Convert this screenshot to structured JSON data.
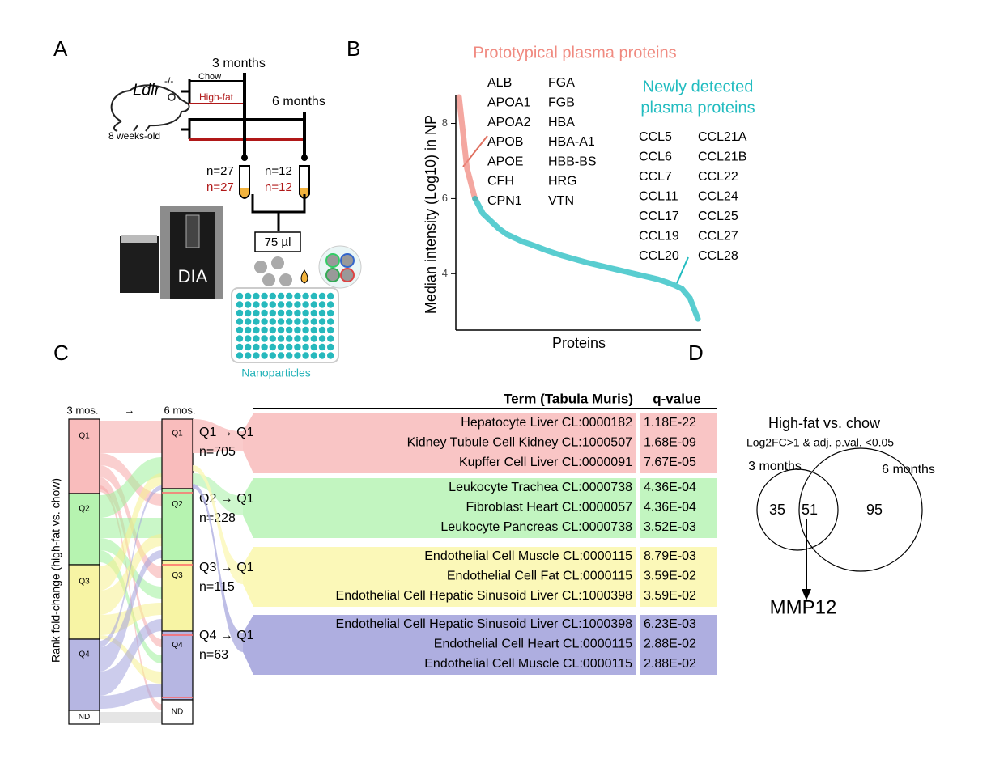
{
  "panels": {
    "a": "A",
    "b": "B",
    "c": "C",
    "d": "D"
  },
  "panel_a": {
    "time1": "3 months",
    "time2": "6 months",
    "strain": "Ldlr",
    "genotype": "-/-",
    "diet1": "Chow",
    "diet2": "High-fat",
    "age": "8 weeks-old",
    "n_chow_3": "n=27",
    "n_hf_3": "n=27",
    "n_chow_6": "n=12",
    "n_hf_6": "n=12",
    "volume": "75 µl",
    "method": "DIA",
    "particles": "Nanoparticles"
  },
  "chart_data": {
    "type": "line",
    "title": "Prototypical plasma proteins",
    "subtitle": [
      "Newly detected",
      "plasma proteins"
    ],
    "ylabel": "Median intensity (Log10) in NP",
    "xlabel": "Proteins",
    "ylim": [
      2.5,
      8.7
    ],
    "yticks": [
      4,
      6,
      8
    ],
    "series": [
      {
        "name": "Prototypical plasma proteins",
        "color": "#f08a80",
        "values": [
          8.7,
          6.8,
          6.0,
          null,
          null,
          null,
          null,
          null,
          null,
          null,
          null,
          null,
          null,
          null,
          null,
          null,
          null,
          null,
          null,
          null,
          null,
          null,
          null,
          null,
          null,
          null,
          null,
          null,
          null,
          null,
          null
        ]
      },
      {
        "name": "Newly detected plasma proteins",
        "color": "#22bcc0",
        "values": [
          null,
          null,
          6.0,
          5.6,
          5.4,
          5.2,
          5.05,
          4.95,
          4.85,
          4.78,
          4.7,
          4.62,
          4.55,
          4.48,
          4.42,
          4.36,
          4.3,
          4.25,
          4.2,
          4.15,
          4.1,
          4.05,
          4.0,
          3.95,
          3.9,
          3.85,
          3.78,
          3.7,
          3.6,
          3.35,
          2.8
        ]
      }
    ],
    "prototypical_genes": [
      [
        "ALB",
        "APOA1",
        "APOA2",
        "APOB",
        "APOE",
        "CFH",
        "CPN1"
      ],
      [
        "FGA",
        "FGB",
        "HBA",
        "HBA-A1",
        "HBB-BS",
        "HRG",
        "VTN"
      ]
    ],
    "new_genes": [
      [
        "CCL5",
        "CCL6",
        "CCL7",
        "CCL11",
        "CCL17",
        "CCL19",
        "CCL20"
      ],
      [
        "CCL21A",
        "CCL21B",
        "CCL22",
        "CCL24",
        "CCL25",
        "CCL27",
        "CCL28"
      ]
    ]
  },
  "panel_c": {
    "columns": [
      "3 mos.",
      "6 mos."
    ],
    "arrow": "→",
    "quartiles": [
      "Q1",
      "Q2",
      "Q3",
      "Q4",
      "ND"
    ],
    "axis_label": "Rank fold-change (high-fat vs. chow)",
    "table": {
      "header": [
        "Term (Tabula Muris)",
        "q-value"
      ],
      "groups": [
        {
          "label": "Q1 → Q1",
          "n": "n=705",
          "rows": [
            [
              "Hepatocyte Liver CL:0000182",
              "1.18E-22"
            ],
            [
              "Kidney Tubule Cell Kidney CL:1000507",
              "1.68E-09"
            ],
            [
              "Kupffer Cell Liver CL:0000091",
              "7.67E-05"
            ]
          ]
        },
        {
          "label": "Q2 → Q1",
          "n": "n=228",
          "rows": [
            [
              "Leukocyte Trachea CL:0000738",
              "4.36E-04"
            ],
            [
              "Fibroblast Heart CL:0000057",
              "4.36E-04"
            ],
            [
              "Leukocyte Pancreas CL:0000738",
              "3.52E-03"
            ]
          ]
        },
        {
          "label": "Q3 → Q1",
          "n": "n=115",
          "rows": [
            [
              "Endothelial Cell Muscle CL:0000115",
              "8.79E-03"
            ],
            [
              "Endothelial Cell Fat CL:0000115",
              "3.59E-02"
            ],
            [
              "Endothelial Cell Hepatic Sinusoid Liver CL:1000398",
              "3.59E-02"
            ]
          ]
        },
        {
          "label": "Q4 → Q1",
          "n": "n=63",
          "rows": [
            [
              "Endothelial Cell Hepatic Sinusoid Liver CL:1000398",
              "6.23E-03"
            ],
            [
              "Endothelial Cell Heart CL:0000115",
              "2.88E-02"
            ],
            [
              "Endothelial Cell Muscle CL:0000115",
              "2.88E-02"
            ]
          ]
        }
      ]
    }
  },
  "panel_d": {
    "title": "High-fat vs. chow",
    "criteria": "Log2FC>1 & adj. p.val. <0.05",
    "set1": "3 months",
    "set2": "6 months",
    "only1": "35",
    "both": "51",
    "only2": "95",
    "gene": "MMP12"
  }
}
